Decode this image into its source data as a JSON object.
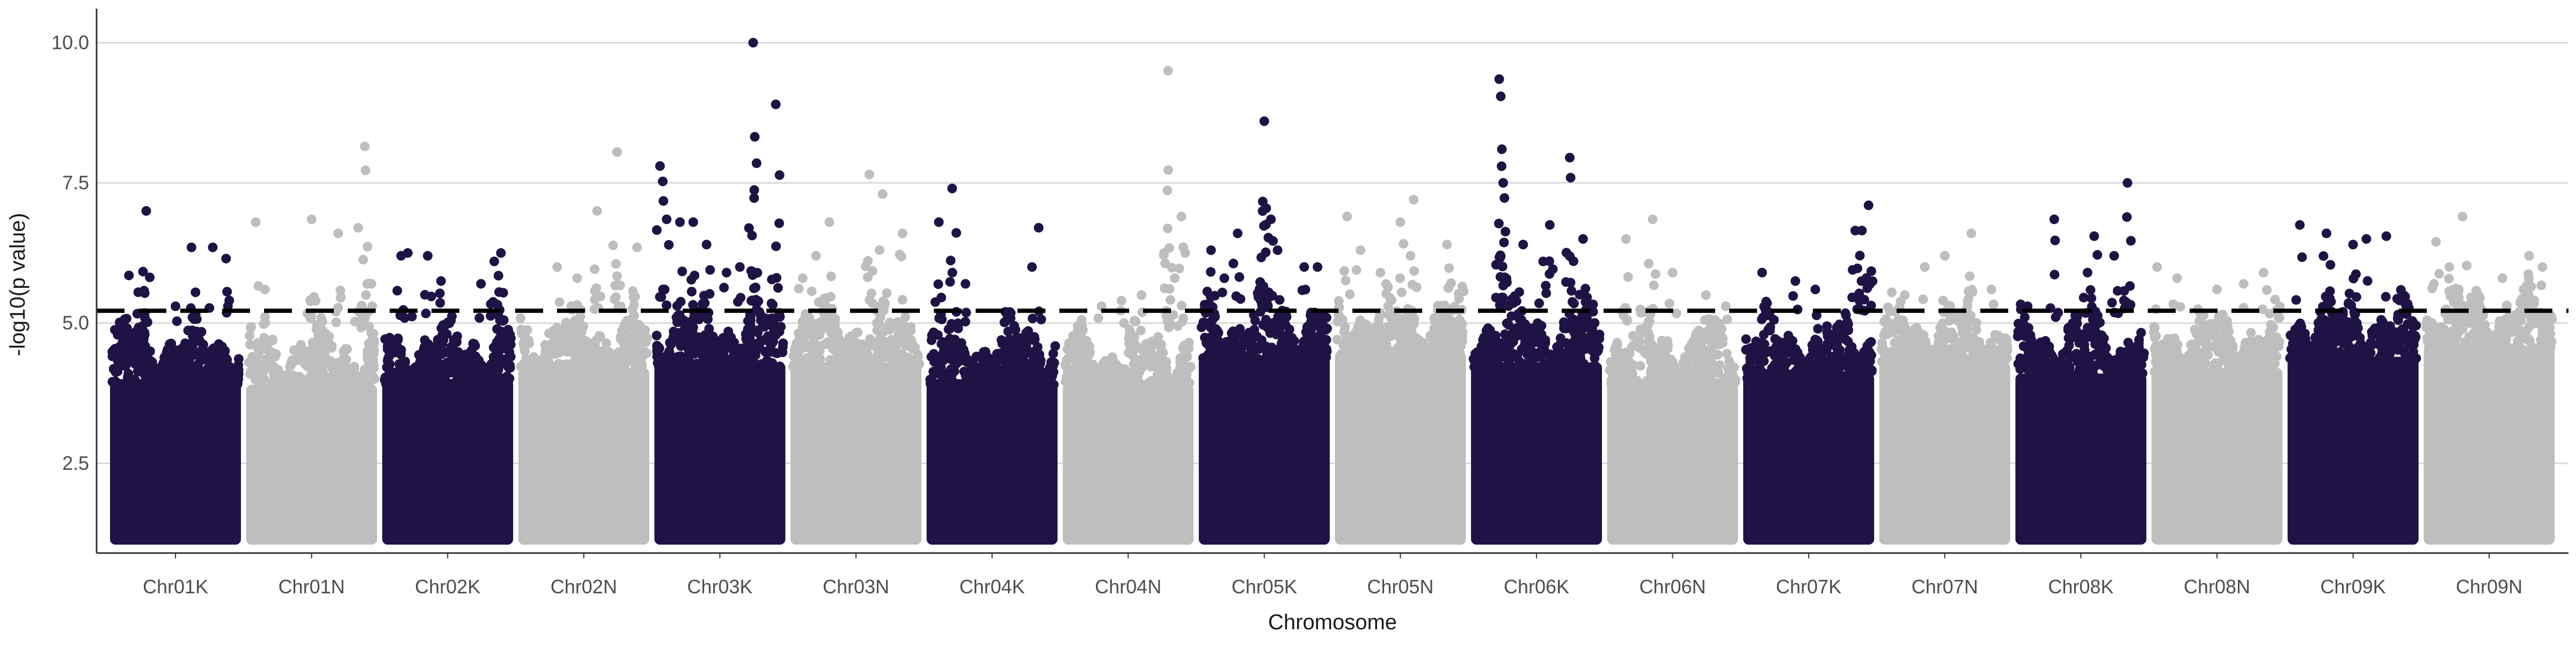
{
  "chart_data": {
    "type": "scatter",
    "title": "",
    "xlabel": "Chromosome",
    "ylabel": "-log10(p value)",
    "ylim": [
      0.9,
      10.55
    ],
    "yticks": [
      2.5,
      5.0,
      7.5,
      10.0
    ],
    "ytick_labels": [
      "2.5",
      "5.0",
      "7.5",
      "10.0"
    ],
    "grid": "horizontal major lines",
    "legend": "none",
    "threshold": 5.22,
    "threshold_style": "dashed",
    "colors": {
      "K": "#1f1245",
      "N": "#bebebe",
      "threshold": "#000000",
      "grid": "#d9d9d9",
      "axis": "#333333"
    },
    "series": [
      {
        "name": "Chr01K",
        "baseline_max": 5.0,
        "peaks": [
          [
            0.15,
            5.85
          ],
          [
            0.22,
            5.55
          ],
          [
            0.28,
            7.0
          ],
          [
            0.62,
            6.35
          ],
          [
            0.78,
            6.35
          ],
          [
            0.88,
            6.15
          ],
          [
            0.5,
            5.3
          ]
        ]
      },
      {
        "name": "Chr01N",
        "baseline_max": 4.9,
        "peaks": [
          [
            0.08,
            6.8
          ],
          [
            0.15,
            5.6
          ],
          [
            0.5,
            6.85
          ],
          [
            0.7,
            6.6
          ],
          [
            0.9,
            8.15
          ],
          [
            0.85,
            6.7
          ],
          [
            0.95,
            5.7
          ]
        ]
      },
      {
        "name": "Chr02K",
        "baseline_max": 5.0,
        "peaks": [
          [
            0.15,
            6.2
          ],
          [
            0.2,
            6.25
          ],
          [
            0.35,
            6.2
          ],
          [
            0.45,
            5.75
          ],
          [
            0.75,
            5.7
          ],
          [
            0.85,
            6.1
          ],
          [
            0.9,
            6.25
          ]
        ]
      },
      {
        "name": "Chr02N",
        "baseline_max": 5.2,
        "peaks": [
          [
            0.3,
            6.0
          ],
          [
            0.6,
            7.0
          ],
          [
            0.75,
            8.05
          ],
          [
            0.9,
            6.35
          ],
          [
            0.45,
            5.8
          ]
        ]
      },
      {
        "name": "Chr03K",
        "baseline_max": 5.3,
        "peaks": [
          [
            0.05,
            7.8
          ],
          [
            0.1,
            6.85
          ],
          [
            0.2,
            6.8
          ],
          [
            0.3,
            6.8
          ],
          [
            0.55,
            5.9
          ],
          [
            0.75,
            10.0
          ],
          [
            0.92,
            8.9
          ],
          [
            0.4,
            6.4
          ],
          [
            0.65,
            6.0
          ]
        ]
      },
      {
        "name": "Chr03N",
        "baseline_max": 5.3,
        "peaks": [
          [
            0.1,
            5.8
          ],
          [
            0.3,
            6.8
          ],
          [
            0.6,
            7.65
          ],
          [
            0.7,
            7.3
          ],
          [
            0.85,
            6.6
          ],
          [
            0.2,
            6.2
          ]
        ]
      },
      {
        "name": "Chr04K",
        "baseline_max": 5.0,
        "peaks": [
          [
            0.1,
            6.8
          ],
          [
            0.2,
            7.4
          ],
          [
            0.3,
            5.7
          ],
          [
            0.6,
            5.2
          ],
          [
            0.85,
            6.7
          ],
          [
            0.8,
            6.0
          ]
        ]
      },
      {
        "name": "Chr04N",
        "baseline_max": 4.9,
        "peaks": [
          [
            0.3,
            5.3
          ],
          [
            0.45,
            5.4
          ],
          [
            0.6,
            5.5
          ],
          [
            0.8,
            9.5
          ],
          [
            0.9,
            6.9
          ],
          [
            0.85,
            5.8
          ]
        ]
      },
      {
        "name": "Chr05K",
        "baseline_max": 5.4,
        "peaks": [
          [
            0.1,
            6.3
          ],
          [
            0.3,
            6.6
          ],
          [
            0.5,
            8.6
          ],
          [
            0.55,
            6.85
          ],
          [
            0.6,
            6.3
          ],
          [
            0.8,
            6.0
          ],
          [
            0.9,
            6.0
          ],
          [
            0.2,
            5.8
          ]
        ]
      },
      {
        "name": "Chr05N",
        "baseline_max": 5.5,
        "peaks": [
          [
            0.1,
            6.9
          ],
          [
            0.2,
            6.3
          ],
          [
            0.5,
            6.8
          ],
          [
            0.6,
            7.2
          ],
          [
            0.85,
            6.4
          ],
          [
            0.35,
            5.9
          ]
        ]
      },
      {
        "name": "Chr06K",
        "baseline_max": 5.3,
        "peaks": [
          [
            0.22,
            9.35
          ],
          [
            0.24,
            8.1
          ],
          [
            0.25,
            7.5
          ],
          [
            0.4,
            6.4
          ],
          [
            0.6,
            6.75
          ],
          [
            0.75,
            7.95
          ],
          [
            0.85,
            6.5
          ],
          [
            0.55,
            6.1
          ]
        ]
      },
      {
        "name": "Chr06N",
        "baseline_max": 5.0,
        "peaks": [
          [
            0.15,
            6.5
          ],
          [
            0.35,
            6.85
          ],
          [
            0.5,
            5.9
          ],
          [
            0.75,
            5.5
          ],
          [
            0.9,
            5.3
          ]
        ]
      },
      {
        "name": "Chr07K",
        "baseline_max": 5.1,
        "peaks": [
          [
            0.15,
            5.9
          ],
          [
            0.4,
            5.75
          ],
          [
            0.55,
            5.6
          ],
          [
            0.85,
            6.65
          ],
          [
            0.9,
            6.65
          ],
          [
            0.95,
            7.1
          ]
        ]
      },
      {
        "name": "Chr07N",
        "baseline_max": 5.3,
        "peaks": [
          [
            0.35,
            6.0
          ],
          [
            0.5,
            6.2
          ],
          [
            0.7,
            6.6
          ],
          [
            0.85,
            5.6
          ],
          [
            0.2,
            5.5
          ]
        ]
      },
      {
        "name": "Chr08K",
        "baseline_max": 5.1,
        "peaks": [
          [
            0.1,
            5.3
          ],
          [
            0.3,
            6.85
          ],
          [
            0.6,
            6.55
          ],
          [
            0.55,
            5.9
          ],
          [
            0.85,
            7.5
          ],
          [
            0.75,
            6.2
          ]
        ]
      },
      {
        "name": "Chr08N",
        "baseline_max": 5.2,
        "peaks": [
          [
            0.05,
            6.0
          ],
          [
            0.2,
            5.8
          ],
          [
            0.5,
            5.6
          ],
          [
            0.7,
            5.7
          ],
          [
            0.85,
            5.9
          ]
        ]
      },
      {
        "name": "Chr09K",
        "baseline_max": 5.4,
        "peaks": [
          [
            0.1,
            6.75
          ],
          [
            0.3,
            6.6
          ],
          [
            0.5,
            6.4
          ],
          [
            0.6,
            6.5
          ],
          [
            0.75,
            6.55
          ],
          [
            0.9,
            5.3
          ]
        ]
      },
      {
        "name": "Chr09N",
        "baseline_max": 5.6,
        "peaks": [
          [
            0.1,
            6.45
          ],
          [
            0.2,
            6.0
          ],
          [
            0.3,
            6.9
          ],
          [
            0.6,
            5.8
          ],
          [
            0.8,
            6.2
          ],
          [
            0.9,
            6.0
          ]
        ]
      }
    ]
  }
}
